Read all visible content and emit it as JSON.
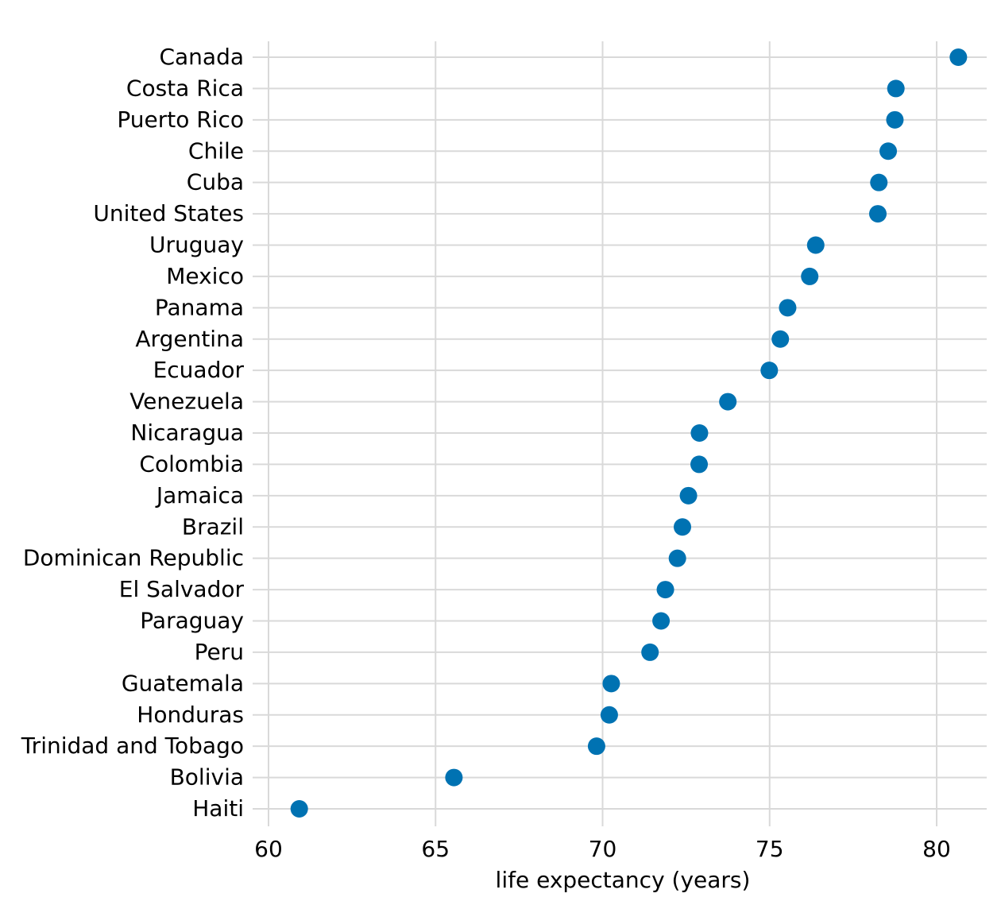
{
  "chart_data": {
    "type": "scatter",
    "title": "",
    "xlabel": "life expectancy (years)",
    "ylabel": "",
    "xlim": [
      59.5,
      81.5
    ],
    "xticks": [
      60,
      65,
      70,
      75,
      80
    ],
    "xtick_labels": [
      "60",
      "65",
      "70",
      "75",
      "80"
    ],
    "grid": true,
    "point_color": "#0072B2",
    "categories": [
      "Canada",
      "Costa Rica",
      "Puerto Rico",
      "Chile",
      "Cuba",
      "United States",
      "Uruguay",
      "Mexico",
      "Panama",
      "Argentina",
      "Ecuador",
      "Venezuela",
      "Nicaragua",
      "Colombia",
      "Jamaica",
      "Brazil",
      "Dominican Republic",
      "El Salvador",
      "Paraguay",
      "Peru",
      "Guatemala",
      "Honduras",
      "Trinidad and Tobago",
      "Bolivia",
      "Haiti"
    ],
    "values": [
      80.65,
      78.78,
      78.75,
      78.55,
      78.27,
      78.24,
      76.38,
      76.2,
      75.54,
      75.32,
      74.99,
      73.75,
      72.9,
      72.89,
      72.57,
      72.39,
      72.24,
      71.88,
      71.75,
      71.42,
      70.26,
      70.2,
      69.82,
      65.55,
      60.92
    ]
  }
}
